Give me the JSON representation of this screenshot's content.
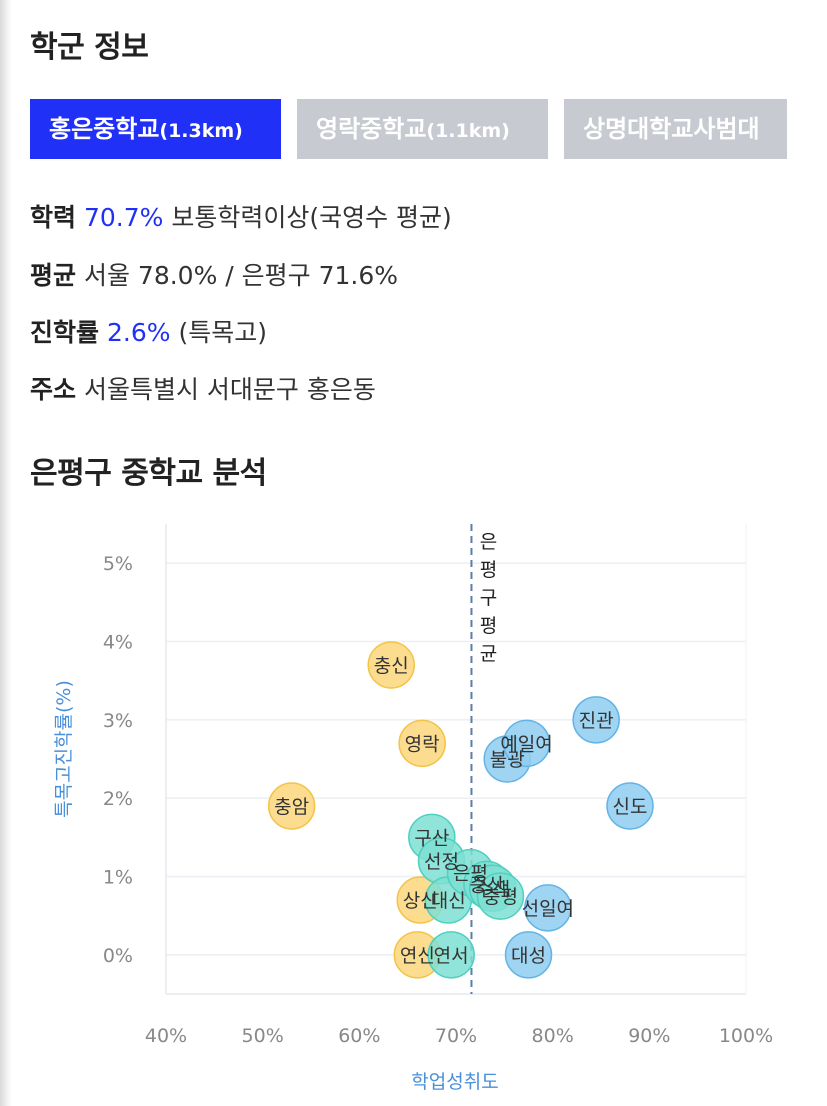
{
  "section_title": "학군 정보",
  "tabs": [
    {
      "name": "홍은중학교",
      "distance": "(1.3km)",
      "active": true
    },
    {
      "name": "영락중학교",
      "distance": "(1.1km)",
      "active": false
    },
    {
      "name": "상명대학교사범대",
      "distance": "",
      "active": false
    }
  ],
  "info": {
    "achievement_label": "학력",
    "achievement_value": "70.7%",
    "achievement_desc": "보통학력이상(국영수 평균)",
    "average_label": "평균",
    "average_value": "서울 78.0% / 은평구 71.6%",
    "advance_label": "진학률",
    "advance_value": "2.6%",
    "advance_desc": "(특목고)",
    "address_label": "주소",
    "address_value": "서울특별시 서대문구 홍은동"
  },
  "analysis_title": "은평구 중학교 분석",
  "colors": {
    "accent": "#2130f6",
    "tab_inactive": "#c8cad1",
    "bubble_blue": "#8ecdf0",
    "bubble_yellow": "#fbd77c",
    "bubble_teal": "#7edfd2",
    "axis_title": "#4a90d9"
  },
  "chart_data": {
    "type": "scatter",
    "xlabel": "학업성취도",
    "ylabel": "특목고진학률(%)",
    "xlim": [
      40,
      100
    ],
    "ylim": [
      -0.5,
      5.5
    ],
    "x_ticks": [
      "40%",
      "50%",
      "60%",
      "70%",
      "80%",
      "90%",
      "100%"
    ],
    "y_ticks": [
      "0%",
      "1%",
      "2%",
      "3%",
      "4%",
      "5%"
    ],
    "x_tick_values": [
      40,
      50,
      60,
      70,
      80,
      90,
      100
    ],
    "y_tick_values": [
      0,
      1,
      2,
      3,
      4,
      5
    ],
    "grid": true,
    "average_line": {
      "x": 71.6,
      "label": "은평구평균"
    },
    "points": [
      {
        "name": "충암",
        "x": 53.0,
        "y": 1.9,
        "group": "yellow"
      },
      {
        "name": "충신",
        "x": 63.3,
        "y": 3.7,
        "group": "yellow"
      },
      {
        "name": "영락",
        "x": 66.5,
        "y": 2.7,
        "group": "yellow"
      },
      {
        "name": "상신",
        "x": 66.3,
        "y": 0.7,
        "group": "yellow"
      },
      {
        "name": "연신",
        "x": 66.0,
        "y": 0.0,
        "group": "yellow"
      },
      {
        "name": "구산",
        "x": 67.5,
        "y": 1.5,
        "group": "teal"
      },
      {
        "name": "선정",
        "x": 68.5,
        "y": 1.2,
        "group": "teal"
      },
      {
        "name": "대신",
        "x": 69.2,
        "y": 0.7,
        "group": "teal"
      },
      {
        "name": "연서",
        "x": 69.5,
        "y": 0.0,
        "group": "teal"
      },
      {
        "name": "은평",
        "x": 71.5,
        "y": 1.05,
        "group": "teal"
      },
      {
        "name": "증산",
        "x": 73.2,
        "y": 0.9,
        "group": "teal"
      },
      {
        "name": "수색",
        "x": 73.8,
        "y": 0.85,
        "group": "teal"
      },
      {
        "name": "충평",
        "x": 74.6,
        "y": 0.75,
        "group": "teal"
      },
      {
        "name": "불광",
        "x": 75.3,
        "y": 2.5,
        "group": "blue"
      },
      {
        "name": "예일여",
        "x": 77.3,
        "y": 2.7,
        "group": "blue"
      },
      {
        "name": "진관",
        "x": 84.5,
        "y": 3.0,
        "group": "blue"
      },
      {
        "name": "신도",
        "x": 88.0,
        "y": 1.9,
        "group": "blue"
      },
      {
        "name": "선일여",
        "x": 79.5,
        "y": 0.6,
        "group": "blue"
      },
      {
        "name": "대성",
        "x": 77.5,
        "y": 0.0,
        "group": "blue"
      }
    ]
  }
}
